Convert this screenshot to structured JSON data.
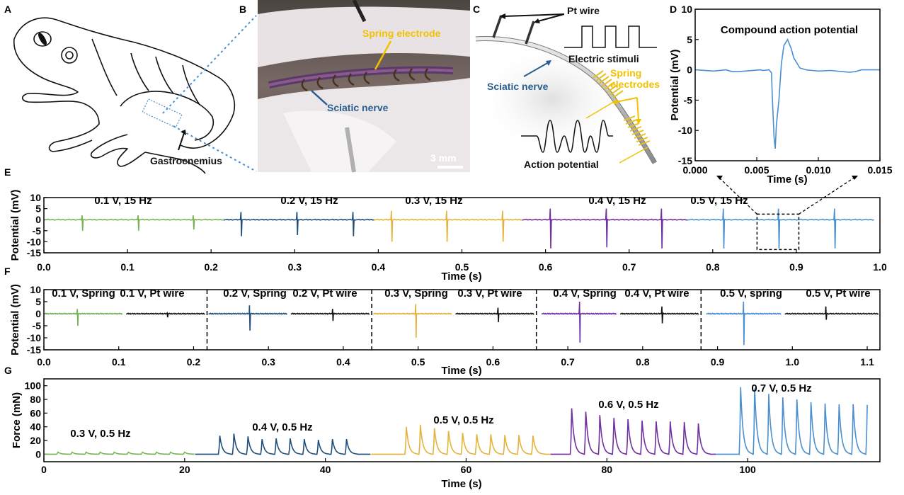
{
  "panel_labels": {
    "A": "A",
    "B": "B",
    "C": "C",
    "D": "D",
    "E": "E",
    "F": "F",
    "G": "G"
  },
  "colors": {
    "green": "#77b255",
    "darkblue": "#1f4e79",
    "yellow": "#e3b33b",
    "purple": "#7030a0",
    "lightblue": "#4a8fd0",
    "black": "#111111"
  },
  "illustrations": {
    "A": {
      "label": "Gastrocnemius"
    },
    "B": {
      "spring_label": "Spring electrode",
      "nerve_label": "Sciatic nerve",
      "scale_bar": "3 mm"
    },
    "C": {
      "pt_wire": "Pt wire",
      "stimuli": "Electric stimuli",
      "spring": "Spring",
      "electrodes": "electrodes",
      "nerve": "Sciatic nerve",
      "action": "Action potential"
    }
  },
  "chart_data": [
    {
      "id": "D",
      "type": "line",
      "title": "Compound action potential",
      "xlabel": "Time (s)",
      "ylabel": "Potential (mV)",
      "xlim": [
        0,
        0.015
      ],
      "ylim": [
        -15,
        10
      ],
      "xticks": [
        "0.000",
        "0.005",
        "0.010",
        "0.015"
      ],
      "xtick_values": [
        0,
        0.005,
        0.01,
        0.015
      ],
      "yticks": [
        "10",
        "5",
        "0",
        "-5",
        "-10",
        "-15"
      ],
      "ytick_values": [
        10,
        5,
        0,
        -5,
        -10,
        -15
      ],
      "series": [
        {
          "color": "#4a8fd0",
          "x": [
            0,
            0.0015,
            0.0025,
            0.003,
            0.0035,
            0.0053,
            0.0055,
            0.006,
            0.0062,
            0.00625,
            0.0064,
            0.0065,
            0.0066,
            0.0068,
            0.007,
            0.0072,
            0.0075,
            0.0078,
            0.008,
            0.0085,
            0.009,
            0.0095,
            0.01,
            0.011,
            0.012,
            0.0125,
            0.013,
            0.0135,
            0.015
          ],
          "y": [
            0,
            -0.2,
            0,
            -0.3,
            -0.3,
            0,
            -0.1,
            0,
            -0.5,
            -4,
            -11,
            -13,
            -9,
            -5,
            1,
            4,
            5,
            3.5,
            2,
            0.3,
            0,
            -0.1,
            -0.2,
            -0.1,
            -0.3,
            -0.4,
            -0.3,
            0,
            0
          ]
        }
      ]
    },
    {
      "id": "E",
      "type": "line",
      "xlabel": "Time (s)",
      "ylabel": "Potential (mV)",
      "xlim": [
        0,
        1.0
      ],
      "ylim": [
        -15,
        10
      ],
      "xticks": [
        "0.0",
        "0.1",
        "0.2",
        "0.3",
        "0.4",
        "0.5",
        "0.6",
        "0.7",
        "0.8",
        "0.9",
        "1.0"
      ],
      "xtick_values": [
        0,
        0.1,
        0.2,
        0.3,
        0.4,
        0.5,
        0.6,
        0.7,
        0.8,
        0.9,
        1.0
      ],
      "yticks": [
        "10",
        "5",
        "0",
        "-5",
        "-10",
        "-15"
      ],
      "ytick_values": [
        10,
        5,
        0,
        -5,
        -10,
        -15
      ],
      "zoom_box": {
        "x": [
          0.853,
          0.903
        ],
        "y": [
          -13.5,
          2.5
        ]
      },
      "series": [
        {
          "name": "0.1 V, 15 Hz",
          "color": "#77b255",
          "range": [
            0,
            0.215
          ],
          "spikes": [
            [
              0.046,
              2,
              -5
            ],
            [
              0.113,
              2,
              -5
            ],
            [
              0.179,
              2,
              -4.5
            ]
          ]
        },
        {
          "name": "0.2 V, 15 Hz",
          "color": "#1f4e79",
          "range": [
            0.215,
            0.395
          ],
          "spikes": [
            [
              0.236,
              3.5,
              -7.5
            ],
            [
              0.303,
              3.5,
              -7
            ],
            [
              0.37,
              3.5,
              -7.5
            ]
          ]
        },
        {
          "name": "0.3 V, 15 Hz",
          "color": "#e3b33b",
          "range": [
            0.395,
            0.572
          ],
          "spikes": [
            [
              0.416,
              4,
              -10
            ],
            [
              0.482,
              4,
              -10
            ],
            [
              0.549,
              4,
              -10
            ]
          ]
        },
        {
          "name": "0.4 V, 15 Hz",
          "label_color": "#111111",
          "color": "#7030a0",
          "range": [
            0.572,
            0.77
          ],
          "spikes": [
            [
              0.606,
              5,
              -13
            ],
            [
              0.673,
              5,
              -12.5
            ],
            [
              0.739,
              5,
              -13
            ]
          ]
        },
        {
          "name": "0.5 V, 15 Hz",
          "color": "#4a8fd0",
          "range": [
            0.77,
            0.993
          ],
          "spikes": [
            [
              0.813,
              5,
              -13
            ],
            [
              0.879,
              5,
              -13
            ],
            [
              0.946,
              5,
              -13
            ]
          ]
        }
      ]
    },
    {
      "id": "F",
      "type": "line",
      "xlabel": "Time (s)",
      "ylabel": "Potential (mV)",
      "xlim": [
        0,
        1.117
      ],
      "ylim": [
        -15,
        10
      ],
      "xticks": [
        "0.0",
        "0.1",
        "0.2",
        "0.3",
        "0.4",
        "0.5",
        "0.6",
        "0.7",
        "0.8",
        "0.9",
        "1.0",
        "1.1"
      ],
      "xtick_values": [
        0,
        0.1,
        0.2,
        0.3,
        0.4,
        0.5,
        0.6,
        0.7,
        0.8,
        0.9,
        1.0,
        1.1
      ],
      "yticks": [
        "10",
        "5",
        "0",
        "-5",
        "-10",
        "-15"
      ],
      "ytick_values": [
        10,
        5,
        0,
        -5,
        -10,
        -15
      ],
      "dividers": [
        0.218,
        0.438,
        0.658,
        0.878
      ],
      "series": [
        {
          "name": "0.1 V, Spring",
          "color": "#77b255",
          "range": [
            0,
            0.105
          ],
          "spikes": [
            [
              0.045,
              2,
              -5
            ]
          ]
        },
        {
          "name": "0.1 V, Pt wire",
          "color": "#111111",
          "range": [
            0.11,
            0.215
          ],
          "spikes": [
            [
              0.165,
              0.3,
              -1.5
            ]
          ]
        },
        {
          "name": "0.2 V, Spring",
          "color": "#1f4e79",
          "range": [
            0.22,
            0.325
          ],
          "spikes": [
            [
              0.275,
              3.5,
              -7
            ]
          ]
        },
        {
          "name": "0.2 V, Pt wire",
          "color": "#111111",
          "range": [
            0.33,
            0.435
          ],
          "spikes": [
            [
              0.386,
              2,
              -3
            ]
          ]
        },
        {
          "name": "0.3 V, Spring",
          "color": "#e3b33b",
          "range": [
            0.44,
            0.545
          ],
          "spikes": [
            [
              0.497,
              4,
              -10
            ]
          ]
        },
        {
          "name": "0.3 V, Pt wire",
          "color": "#111111",
          "range": [
            0.55,
            0.655
          ],
          "spikes": [
            [
              0.607,
              2.5,
              -3.5
            ]
          ]
        },
        {
          "name": "0.4 V, Spring",
          "color": "#7030a0",
          "range": [
            0.665,
            0.765
          ],
          "spikes": [
            [
              0.716,
              5,
              -12
            ]
          ]
        },
        {
          "name": "0.4 V, Pt wire",
          "color": "#111111",
          "range": [
            0.77,
            0.875
          ],
          "spikes": [
            [
              0.826,
              3,
              -4
            ]
          ]
        },
        {
          "name": "0.5 V, spring",
          "color": "#4a8fd0",
          "range": [
            0.885,
            0.985
          ],
          "spikes": [
            [
              0.935,
              5,
              -13
            ]
          ]
        },
        {
          "name": "0.5 V, Pt wire",
          "color": "#111111",
          "range": [
            0.99,
            1.115
          ],
          "spikes": [
            [
              1.045,
              3,
              -2.5
            ]
          ]
        }
      ]
    },
    {
      "id": "G",
      "type": "line",
      "xlabel": "Time (s)",
      "ylabel": "Force (mN)",
      "xlim": [
        0,
        118.8
      ],
      "ylim": [
        -11,
        110
      ],
      "xticks": [
        "0",
        "20",
        "40",
        "60",
        "80",
        "100"
      ],
      "xtick_values": [
        0,
        20,
        40,
        60,
        80,
        100
      ],
      "yticks": [
        "100",
        "80",
        "60",
        "40",
        "20",
        "0"
      ],
      "ytick_values": [
        100,
        80,
        60,
        40,
        20,
        0
      ],
      "series": [
        {
          "name": "0.3 V, 0.5 Hz",
          "color": "#77b255",
          "range": [
            0,
            21.5
          ],
          "peak_times": [
            2,
            4,
            6,
            8,
            10,
            12,
            14,
            16,
            18,
            20
          ],
          "peaks": [
            3,
            3,
            3,
            3,
            3,
            3,
            3,
            3,
            3,
            3
          ]
        },
        {
          "name": "0.4 V, 0.5 Hz",
          "color": "#1f4e79",
          "range": [
            21.5,
            46.5
          ],
          "peak_times": [
            25,
            27,
            29,
            31,
            33,
            35,
            37,
            39,
            41,
            43
          ],
          "peaks": [
            27,
            30,
            26,
            22,
            23,
            23,
            22,
            21,
            22,
            22
          ]
        },
        {
          "name": "0.5 V, 0.5 Hz",
          "color": "#e3b33b",
          "range": [
            46.5,
            72
          ],
          "peak_times": [
            51.5,
            53.5,
            55.5,
            57.5,
            59.5,
            61.5,
            63.5,
            65.5,
            67.5,
            69.5
          ],
          "peaks": [
            40,
            43,
            38,
            34,
            31,
            29,
            29,
            28,
            28,
            27
          ]
        },
        {
          "name": "0.6 V, 0.5 Hz",
          "color": "#7030a0",
          "range": [
            72,
            95.5
          ],
          "peak_times": [
            75,
            77,
            79,
            81,
            83,
            85,
            87,
            89,
            91,
            93
          ],
          "peaks": [
            67,
            62,
            57,
            53,
            51,
            49,
            48,
            48,
            47,
            45
          ]
        },
        {
          "name": "0.7 V, 0.5 Hz",
          "color": "#4a8fd0",
          "range": [
            95.5,
            117
          ],
          "peak_times": [
            99,
            101,
            103,
            105,
            107,
            109,
            111,
            113,
            115,
            117
          ],
          "peaks": [
            98,
            96,
            88,
            83,
            80,
            76,
            74,
            73,
            73,
            72
          ]
        }
      ]
    }
  ]
}
